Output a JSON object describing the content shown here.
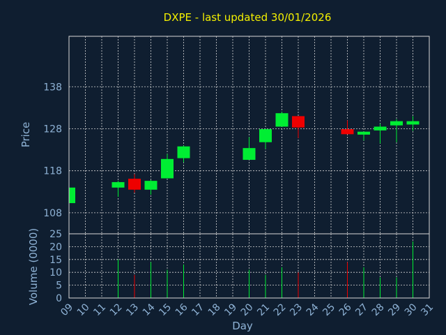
{
  "chart_data": [
    {
      "type": "candlestick",
      "title": "DXPE - last updated 30/01/2026",
      "ylabel": "Price",
      "ylim": [
        103,
        150
      ],
      "yticks": [
        "108",
        "118",
        "128",
        "138"
      ],
      "grid": true,
      "candles": [
        {
          "day": "09",
          "open": 110.3,
          "high": 114.0,
          "low": 110.3,
          "close": 114.0
        },
        {
          "day": "12",
          "open": 114.0,
          "high": 115.6,
          "low": 111.8,
          "close": 115.3
        },
        {
          "day": "13",
          "open": 116.1,
          "high": 117.2,
          "low": 112.8,
          "close": 113.5
        },
        {
          "day": "14",
          "open": 113.5,
          "high": 115.8,
          "low": 112.3,
          "close": 115.6
        },
        {
          "day": "15",
          "open": 116.2,
          "high": 122.0,
          "low": 116.2,
          "close": 120.8
        },
        {
          "day": "16",
          "open": 121.0,
          "high": 124.0,
          "low": 120.0,
          "close": 123.8
        },
        {
          "day": "20",
          "open": 120.6,
          "high": 126.0,
          "low": 120.6,
          "close": 123.4
        },
        {
          "day": "21",
          "open": 124.8,
          "high": 128.0,
          "low": 123.2,
          "close": 127.9
        },
        {
          "day": "22",
          "open": 128.5,
          "high": 132.0,
          "low": 128.5,
          "close": 131.7
        },
        {
          "day": "23",
          "open": 131.0,
          "high": 131.0,
          "low": 125.8,
          "close": 128.3
        },
        {
          "day": "26",
          "open": 127.9,
          "high": 130.0,
          "low": 126.7,
          "close": 126.7
        },
        {
          "day": "27",
          "open": 126.6,
          "high": 127.3,
          "low": 125.2,
          "close": 127.3
        },
        {
          "day": "28",
          "open": 127.6,
          "high": 129.2,
          "low": 124.5,
          "close": 128.5
        },
        {
          "day": "29",
          "open": 128.8,
          "high": 130.3,
          "low": 124.8,
          "close": 129.8
        },
        {
          "day": "30",
          "open": 129.0,
          "high": 131.0,
          "low": 127.5,
          "close": 129.8
        }
      ]
    },
    {
      "type": "bar",
      "ylabel": "Volume (0000)",
      "xlabel": "Day",
      "ylim": [
        0,
        25
      ],
      "yticks": [
        "0",
        "5",
        "10",
        "15",
        "20",
        "25"
      ],
      "categories": [
        "09",
        "10",
        "11",
        "12",
        "13",
        "14",
        "15",
        "16",
        "17",
        "18",
        "19",
        "20",
        "21",
        "22",
        "23",
        "24",
        "25",
        "26",
        "27",
        "28",
        "29",
        "30",
        "31"
      ],
      "volumes": [
        {
          "day": "12",
          "value": 15,
          "direction": "up"
        },
        {
          "day": "13",
          "value": 9,
          "direction": "down"
        },
        {
          "day": "14",
          "value": 14,
          "direction": "up"
        },
        {
          "day": "15",
          "value": 11,
          "direction": "up"
        },
        {
          "day": "16",
          "value": 13,
          "direction": "up"
        },
        {
          "day": "20",
          "value": 11,
          "direction": "up"
        },
        {
          "day": "21",
          "value": 9,
          "direction": "up"
        },
        {
          "day": "22",
          "value": 12,
          "direction": "up"
        },
        {
          "day": "23",
          "value": 10,
          "direction": "down"
        },
        {
          "day": "26",
          "value": 14,
          "direction": "down"
        },
        {
          "day": "27",
          "value": 12,
          "direction": "up"
        },
        {
          "day": "28",
          "value": 8,
          "direction": "up"
        },
        {
          "day": "29",
          "value": 8,
          "direction": "up"
        },
        {
          "day": "30",
          "value": 22,
          "direction": "up"
        }
      ]
    }
  ],
  "colors": {
    "background": "#0f1e30",
    "up": "#00ee33",
    "down": "#ee0000",
    "title": "#f4f000",
    "label": "#8fb3d6",
    "grid": "#d8d8d8"
  }
}
